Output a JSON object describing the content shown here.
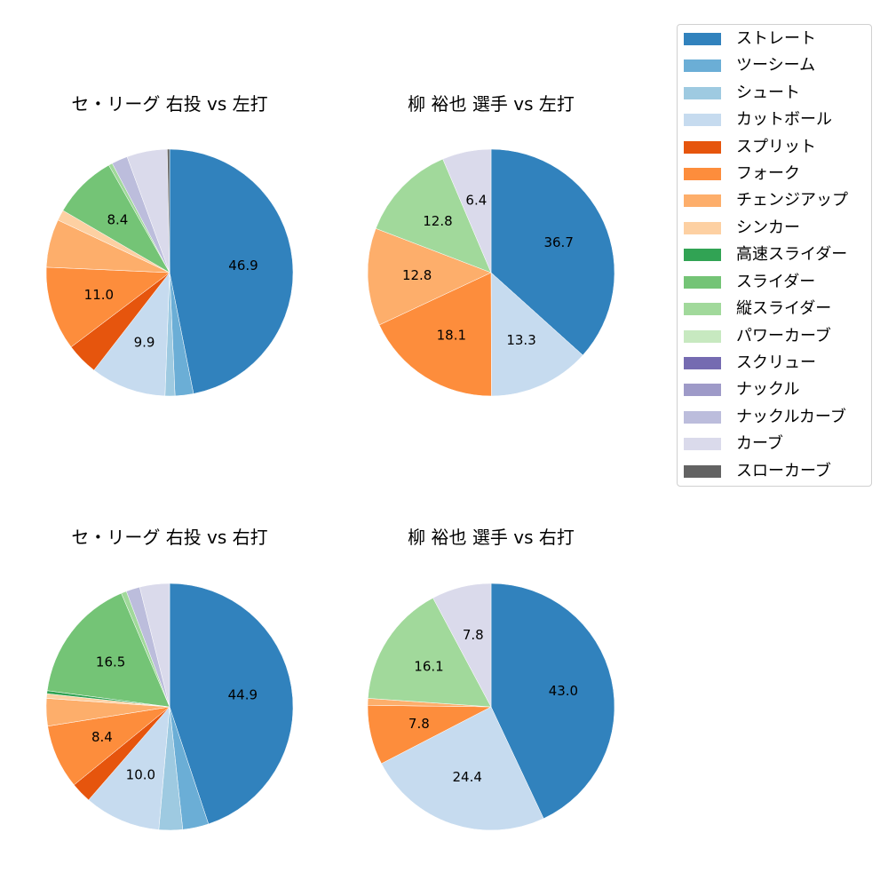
{
  "legend": {
    "items": [
      {
        "label": "ストレート",
        "color": "#3182bd"
      },
      {
        "label": "ツーシーム",
        "color": "#6baed6"
      },
      {
        "label": "シュート",
        "color": "#9ecae1"
      },
      {
        "label": "カットボール",
        "color": "#c6dbef"
      },
      {
        "label": "スプリット",
        "color": "#e6550d"
      },
      {
        "label": "フォーク",
        "color": "#fd8d3c"
      },
      {
        "label": "チェンジアップ",
        "color": "#fdae6b"
      },
      {
        "label": "シンカー",
        "color": "#fdd0a2"
      },
      {
        "label": "高速スライダー",
        "color": "#31a354"
      },
      {
        "label": "スライダー",
        "color": "#74c476"
      },
      {
        "label": "縦スライダー",
        "color": "#a1d99b"
      },
      {
        "label": "パワーカーブ",
        "color": "#c7e9c0"
      },
      {
        "label": "スクリュー",
        "color": "#756bb1"
      },
      {
        "label": "ナックル",
        "color": "#9e9ac8"
      },
      {
        "label": "ナックルカーブ",
        "color": "#bcbddc"
      },
      {
        "label": "カーブ",
        "color": "#dadaeb"
      },
      {
        "label": "スローカーブ",
        "color": "#636363"
      }
    ]
  },
  "chart_data": [
    {
      "type": "pie",
      "title": "セ・リーグ 右投 vs 左打",
      "start_angle": 90,
      "direction": "clockwise",
      "label_threshold": 8,
      "categories": [
        "ストレート",
        "ツーシーム",
        "シュート",
        "カットボール",
        "スプリット",
        "フォーク",
        "チェンジアップ",
        "シンカー",
        "スライダー",
        "縦スライダー",
        "ナックルカーブ",
        "カーブ",
        "スローカーブ"
      ],
      "values": [
        46.9,
        2.4,
        1.3,
        9.9,
        4.2,
        11.0,
        6.3,
        1.4,
        8.4,
        0.5,
        2.1,
        5.3,
        0.3
      ],
      "labels": [
        "46.9",
        "",
        "",
        "9.9",
        "",
        "11.0",
        "",
        "",
        "8.4",
        "",
        "",
        "",
        ""
      ]
    },
    {
      "type": "pie",
      "title": "柳 裕也 選手 vs 左打",
      "start_angle": 90,
      "direction": "clockwise",
      "categories": [
        "ストレート",
        "カットボール",
        "フォーク",
        "チェンジアップ",
        "縦スライダー",
        "カーブ"
      ],
      "values": [
        36.7,
        13.3,
        18.1,
        12.8,
        12.8,
        6.4
      ],
      "labels": [
        "36.7",
        "13.3",
        "18.1",
        "12.8",
        "12.8",
        "6.4"
      ]
    },
    {
      "type": "pie",
      "title": "セ・リーグ 右投 vs 右打",
      "start_angle": 90,
      "direction": "clockwise",
      "categories": [
        "ストレート",
        "ツーシーム",
        "シュート",
        "カットボール",
        "スプリット",
        "フォーク",
        "チェンジアップ",
        "シンカー",
        "高速スライダー",
        "スライダー",
        "縦スライダー",
        "ナックルカーブ",
        "カーブ"
      ],
      "values": [
        44.9,
        3.4,
        3.1,
        10.0,
        2.7,
        8.4,
        3.6,
        0.6,
        0.4,
        16.5,
        0.7,
        1.8,
        3.9
      ],
      "labels": [
        "44.9",
        "",
        "",
        "10.0",
        "",
        "8.4",
        "",
        "",
        "",
        "16.5",
        "",
        "",
        ""
      ]
    },
    {
      "type": "pie",
      "title": "柳 裕也 選手 vs 右打",
      "start_angle": 90,
      "direction": "clockwise",
      "categories": [
        "ストレート",
        "カットボール",
        "フォーク",
        "チェンジアップ",
        "縦スライダー",
        "カーブ"
      ],
      "values": [
        43.0,
        24.4,
        7.8,
        0.9,
        16.1,
        7.8
      ],
      "labels": [
        "43.0",
        "24.4",
        "7.8",
        "",
        "16.1",
        "7.8"
      ]
    }
  ]
}
